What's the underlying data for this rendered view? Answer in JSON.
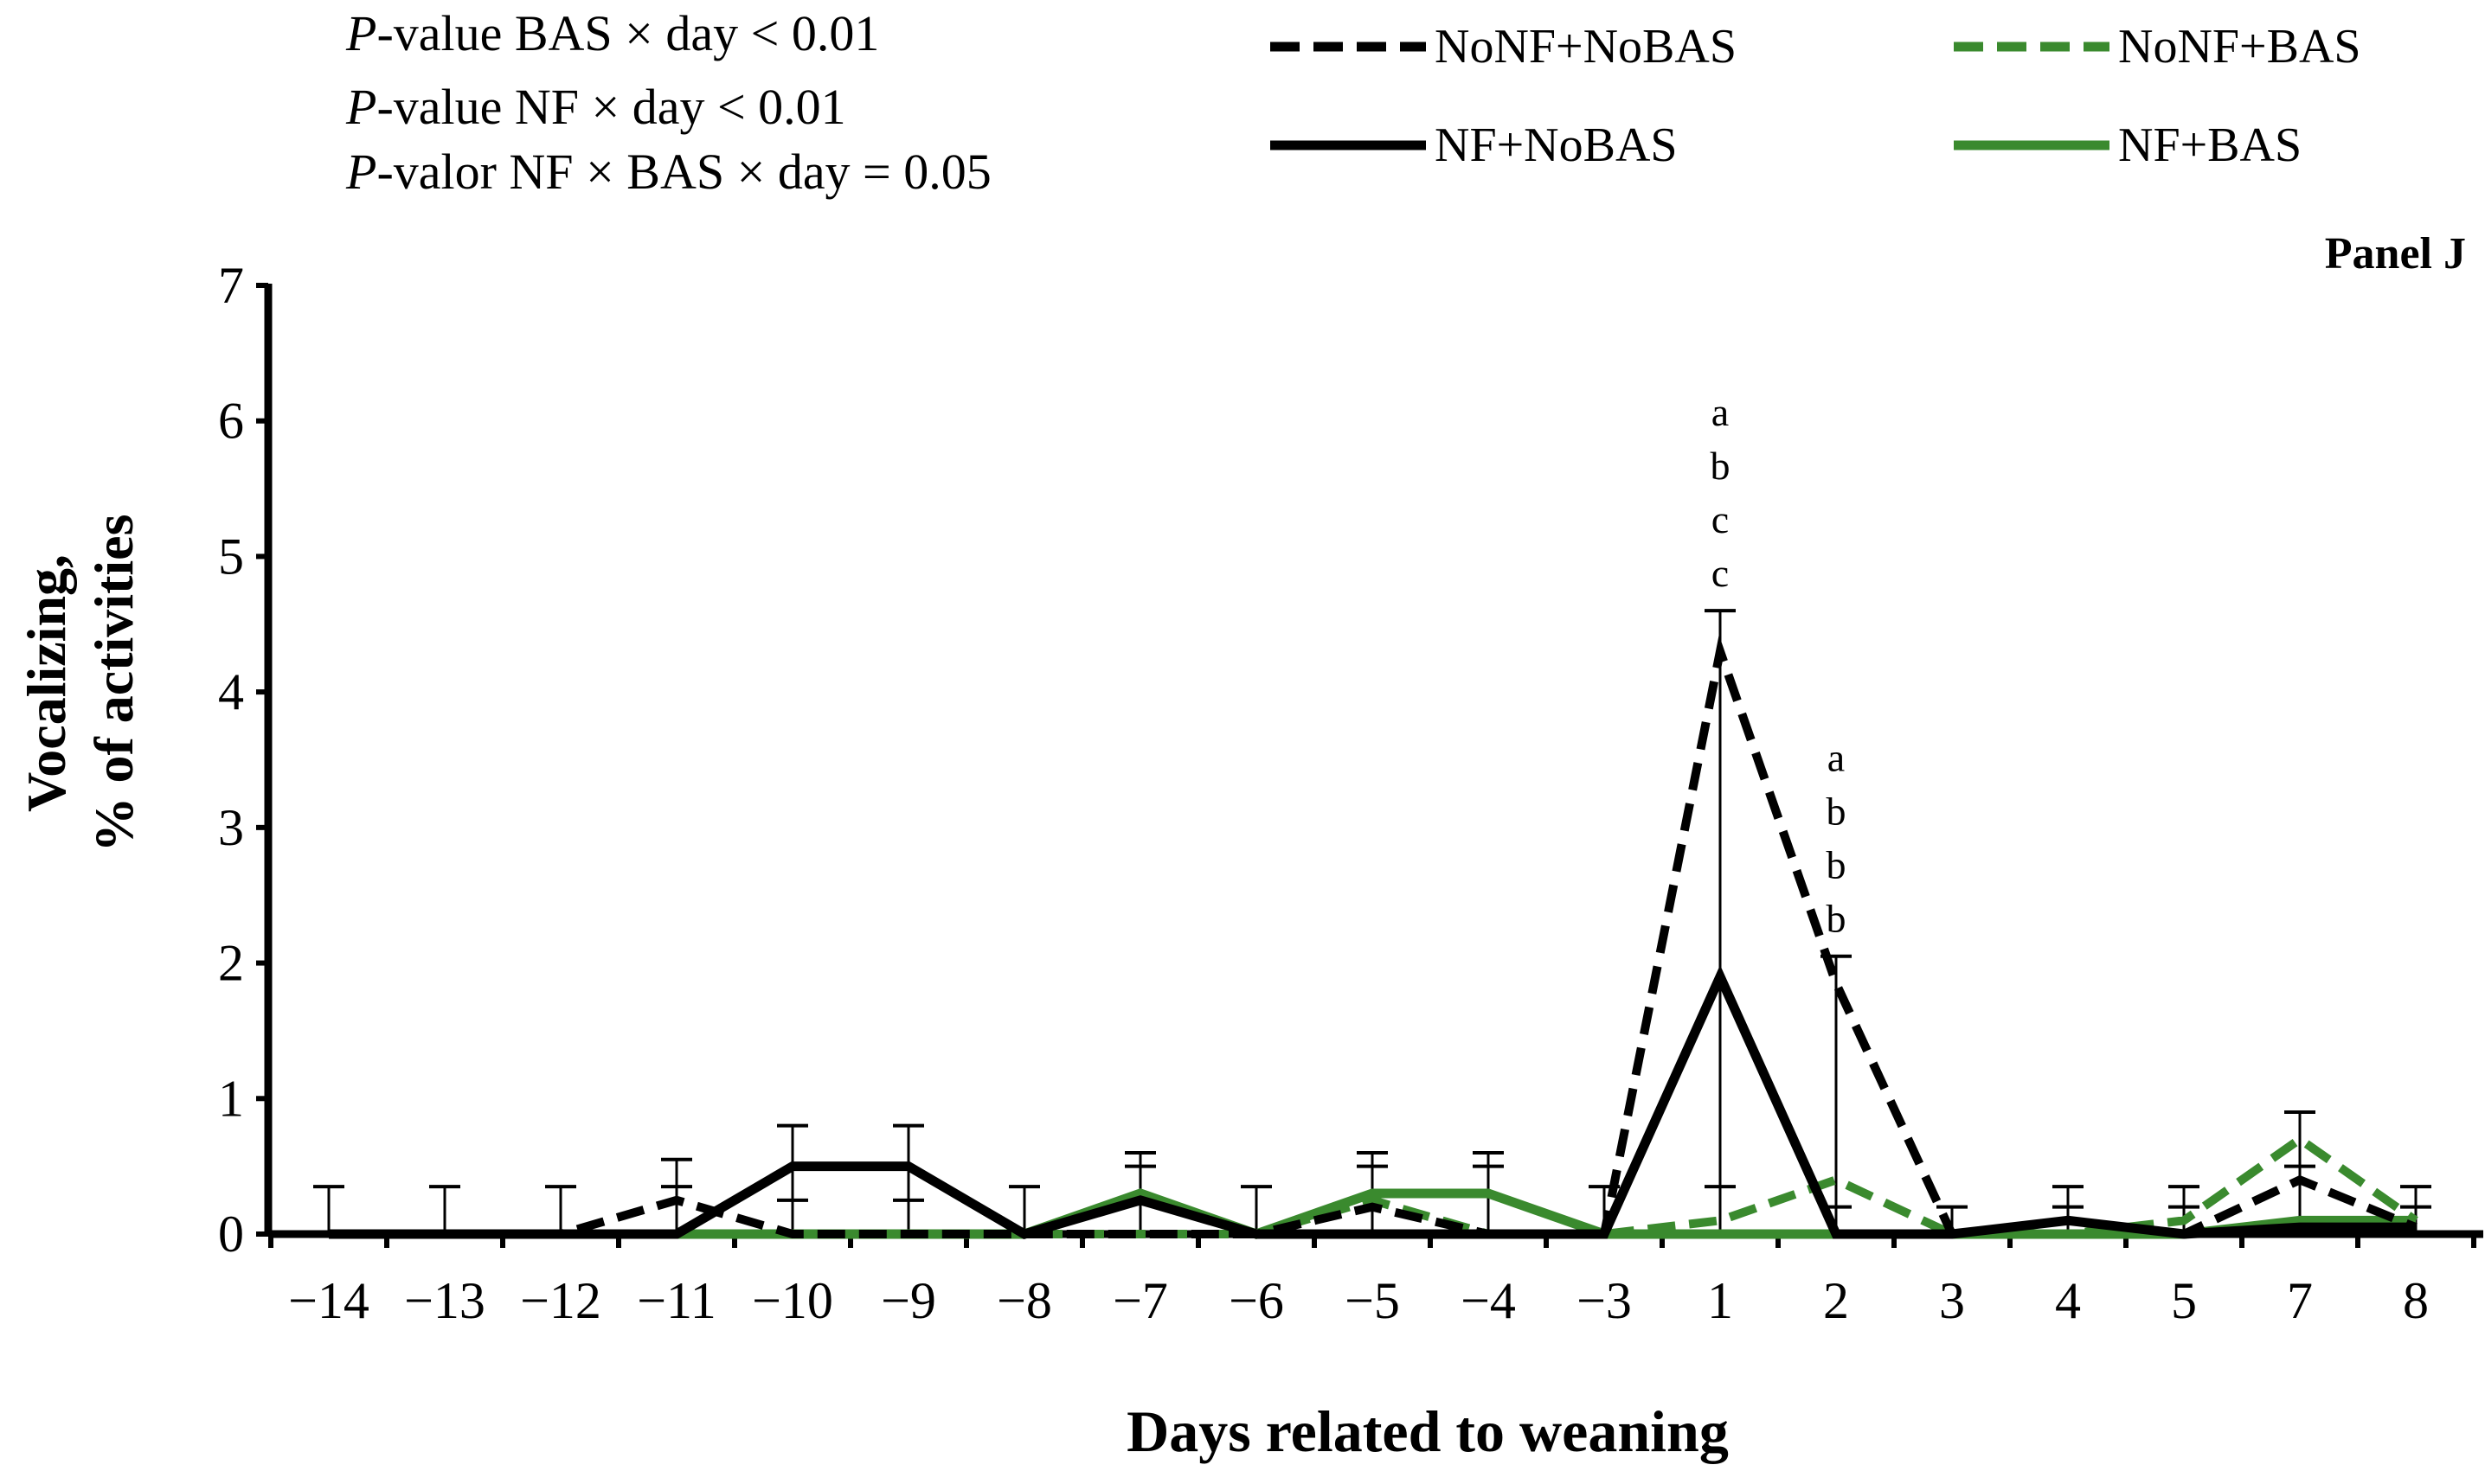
{
  "chart_data": {
    "type": "line",
    "panel_label": "Panel J",
    "xlabel": "Days related to weaning",
    "ylabel_line1": "Vocalizing,",
    "ylabel_line2": "% of activities",
    "ylim": [
      0,
      7
    ],
    "yticks": [
      "0",
      "1",
      "2",
      "3",
      "4",
      "5",
      "6",
      "7"
    ],
    "categories": [
      "−14",
      "−13",
      "−12",
      "−11",
      "−10",
      "−9",
      "−8",
      "−7",
      "−6",
      "−5",
      "−4",
      "−3",
      "1",
      "2",
      "3",
      "4",
      "5",
      "7",
      "8"
    ],
    "stats": {
      "line1_prefix": "P",
      "line1_text": "-value BAS × day < 0.01",
      "line2_prefix": "P",
      "line2_text": "-value NF × day < 0.01",
      "line3_prefix": "P",
      "line3_text": "-valor NF × BAS × day = 0.05"
    },
    "annotations": [
      {
        "day_index": 12,
        "letters": [
          "a",
          "b",
          "c",
          "c"
        ]
      },
      {
        "day_index": 13,
        "letters": [
          "a",
          "b",
          "b",
          "b"
        ]
      }
    ],
    "series": [
      {
        "name": "NoNF+NoBAS",
        "color": "#000000",
        "dashed": true,
        "values": [
          0,
          0,
          0,
          0.25,
          0,
          0,
          0,
          0,
          0,
          0.2,
          0,
          0,
          4.3,
          1.85,
          0,
          0.1,
          0,
          0.4,
          0.05
        ]
      },
      {
        "name": "NoNF+BAS",
        "color": "#3a8a2e",
        "dashed": true,
        "values": [
          0,
          0,
          0,
          0,
          0,
          0,
          0,
          0,
          0,
          0.25,
          0,
          0,
          0.1,
          0.4,
          0,
          0,
          0.1,
          0.7,
          0.1
        ]
      },
      {
        "name": "NF+NoBAS",
        "color": "#000000",
        "dashed": false,
        "values": [
          0,
          0,
          0,
          0,
          0.5,
          0.5,
          0,
          0.25,
          0,
          0,
          0,
          0,
          1.9,
          0,
          0,
          0.1,
          0,
          0.05,
          0.05
        ]
      },
      {
        "name": "NF+BAS",
        "color": "#3a8a2e",
        "dashed": false,
        "values": [
          0,
          0,
          0,
          0,
          0,
          0,
          0,
          0.3,
          0,
          0.3,
          0.3,
          0,
          0,
          0,
          0,
          0,
          0,
          0.1,
          0.1
        ]
      }
    ],
    "error_bar_tops": [
      0.35,
      0.35,
      0.35,
      0.55,
      0.8,
      0.8,
      0.35,
      0.6,
      0.35,
      0.6,
      0.6,
      0.35,
      4.6,
      2.05,
      0.2,
      0.35,
      0.35,
      0.9,
      0.35
    ],
    "error_bar_minor_tops": [
      null,
      null,
      null,
      0.35,
      0.25,
      0.25,
      null,
      0.5,
      null,
      0.5,
      0.5,
      null,
      0.35,
      0.2,
      null,
      0.2,
      0.2,
      0.5,
      0.2
    ],
    "legend": [
      {
        "label": "NoNF+NoBAS",
        "color": "#000000",
        "dashed": true
      },
      {
        "label": "NoNF+BAS",
        "color": "#3a8a2e",
        "dashed": true
      },
      {
        "label": "NF+NoBAS",
        "color": "#000000",
        "dashed": false
      },
      {
        "label": "NF+BAS",
        "color": "#3a8a2e",
        "dashed": false
      }
    ]
  }
}
